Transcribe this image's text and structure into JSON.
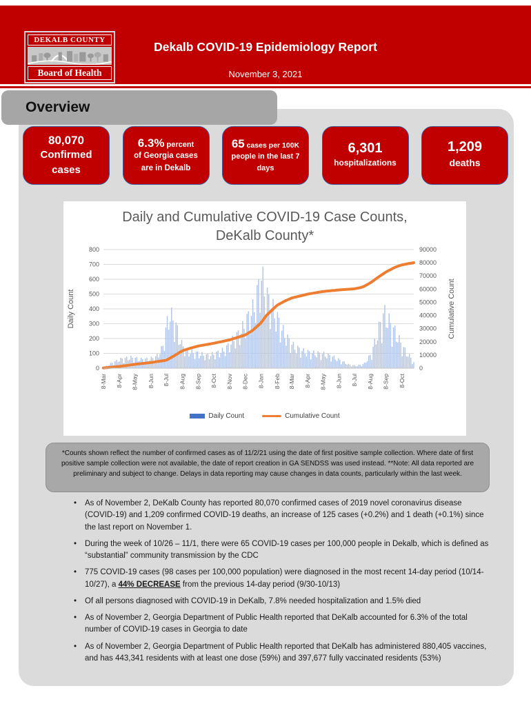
{
  "header": {
    "logo_top": "DEKALB COUNTY",
    "logo_bottom": "Board of Health",
    "title": "Dekalb COVID-19 Epidemiology Report",
    "date": "November 3, 2021"
  },
  "section": {
    "title": "Overview"
  },
  "stats": [
    {
      "primary": "80,070",
      "secondary": "",
      "lines": [
        "Confirmed",
        "cases"
      ]
    },
    {
      "primary": "6.3%",
      "secondary": " percent",
      "lines": [
        "of Georgia cases",
        "are in Dekalb"
      ]
    },
    {
      "primary": "65",
      "secondary": " cases per 100K",
      "lines": [
        "people in the last 7",
        "days"
      ]
    },
    {
      "primary": "6,301",
      "secondary": "",
      "lines": [
        "hospitalizations"
      ]
    },
    {
      "primary": "1,209",
      "secondary": "",
      "lines": [
        "deaths"
      ]
    }
  ],
  "chart_data": {
    "type": "bar+line combo",
    "title": "Daily and Cumulative COVID-19 Case Counts, DeKalb County*",
    "x_ticks": [
      "8-Mar",
      "8-Apr",
      "8-May",
      "8-Jun",
      "8-Jul",
      "8-Aug",
      "8-Sep",
      "8-Oct",
      "8-Nov",
      "8-Dec",
      "8-Jan",
      "8-Feb",
      "8-Mar",
      "8-Apr",
      "8-May",
      "8-Jun",
      "8-Jul",
      "8-Aug",
      "8-Sep",
      "8-Oct"
    ],
    "x_span_days": 602,
    "x_tick_day_offsets": [
      0,
      31,
      61,
      92,
      122,
      153,
      184,
      214,
      245,
      275,
      306,
      337,
      365,
      396,
      426,
      457,
      487,
      518,
      548,
      579
    ],
    "y_left": {
      "label": "Daily Count",
      "min": 0,
      "max": 800,
      "step": 100
    },
    "y_right": {
      "label": "Cumulative Count",
      "min": 0,
      "max": 90000,
      "step": 10000
    },
    "grid": true,
    "legend_position": "bottom",
    "series": [
      {
        "name": "Daily Count",
        "type": "bar",
        "color": "#b3c6e7",
        "legend_color": "#4472c4",
        "envelope_keyframes": [
          [
            0.0,
            5
          ],
          [
            0.03,
            45
          ],
          [
            0.06,
            75
          ],
          [
            0.09,
            85
          ],
          [
            0.12,
            70
          ],
          [
            0.15,
            75
          ],
          [
            0.17,
            90
          ],
          [
            0.19,
            160
          ],
          [
            0.203,
            330
          ],
          [
            0.212,
            445
          ],
          [
            0.222,
            400
          ],
          [
            0.235,
            330
          ],
          [
            0.25,
            200
          ],
          [
            0.27,
            135
          ],
          [
            0.3,
            120
          ],
          [
            0.33,
            100
          ],
          [
            0.36,
            115
          ],
          [
            0.39,
            145
          ],
          [
            0.42,
            230
          ],
          [
            0.445,
            300
          ],
          [
            0.465,
            400
          ],
          [
            0.485,
            480
          ],
          [
            0.5,
            640
          ],
          [
            0.508,
            755
          ],
          [
            0.518,
            640
          ],
          [
            0.535,
            520
          ],
          [
            0.555,
            430
          ],
          [
            0.575,
            310
          ],
          [
            0.595,
            230
          ],
          [
            0.615,
            170
          ],
          [
            0.645,
            135
          ],
          [
            0.675,
            120
          ],
          [
            0.705,
            115
          ],
          [
            0.735,
            95
          ],
          [
            0.765,
            60
          ],
          [
            0.79,
            30
          ],
          [
            0.815,
            18
          ],
          [
            0.84,
            35
          ],
          [
            0.862,
            110
          ],
          [
            0.88,
            250
          ],
          [
            0.895,
            380
          ],
          [
            0.905,
            440
          ],
          [
            0.915,
            400
          ],
          [
            0.93,
            330
          ],
          [
            0.945,
            270
          ],
          [
            0.96,
            190
          ],
          [
            0.975,
            130
          ],
          [
            0.99,
            85
          ],
          [
            1.0,
            45
          ]
        ]
      },
      {
        "name": "Cumulative Count",
        "type": "line",
        "color": "#ed7d31",
        "keyframes": [
          [
            0,
            150
          ],
          [
            0.0515,
            1300
          ],
          [
            0.1013,
            2900
          ],
          [
            0.1528,
            4300
          ],
          [
            0.2027,
            6000
          ],
          [
            0.225,
            9000
          ],
          [
            0.2541,
            13200
          ],
          [
            0.28,
            15200
          ],
          [
            0.3056,
            16800
          ],
          [
            0.3555,
            18900
          ],
          [
            0.407,
            21500
          ],
          [
            0.4568,
            25200
          ],
          [
            0.48,
            28500
          ],
          [
            0.5083,
            34500
          ],
          [
            0.525,
            40000
          ],
          [
            0.5598,
            47800
          ],
          [
            0.585,
            51000
          ],
          [
            0.6063,
            53200
          ],
          [
            0.6578,
            56200
          ],
          [
            0.7076,
            58200
          ],
          [
            0.7591,
            59400
          ],
          [
            0.809,
            60200
          ],
          [
            0.835,
            61500
          ],
          [
            0.8605,
            64800
          ],
          [
            0.885,
            69000
          ],
          [
            0.912,
            73200
          ],
          [
            0.94,
            76600
          ],
          [
            0.9618,
            78400
          ],
          [
            1,
            80070
          ]
        ]
      }
    ]
  },
  "footnote": "*Counts shown reflect the number of confirmed cases as of 11/2/21 using the date of first positive sample collection. Where date of first positive sample collection were not available, the date of report creation in GA SENDSS was used instead. **Note: All data reported are preliminary and subject to change. Delays in data reporting may cause changes in data counts, particularly within the last week.",
  "bullets": [
    "As of November 2, DeKalb County has reported 80,070 confirmed cases of 2019 novel coronavirus disease (COVID-19) and 1,209 confirmed COVID-19 deaths, an increase of 125 cases (+0.2%) and 1 death (+0.1%) since the last report on November 1.",
    "During the week of 10/26 – 11/1, there were 65 COVID-19 cases per 100,000 people in Dekalb, which is defined as “substantial” community transmission by the CDC",
    {
      "pre": "775 COVID-19 cases (98 cases per 100,000 population) were diagnosed in the most recent 14-day period (10/14-10/27), a ",
      "strong": "44% DECREASE",
      "post": " from the previous 14-day period (9/30-10/13)"
    },
    "Of all persons diagnosed with COVID-19 in DeKalb, 7.8% needed hospitalization and 1.5% died",
    "As of November 2, Georgia Department of Public Health reported that DeKalb accounted for 6.3% of the total number of COVID-19 cases in Georgia to date",
    "As of November 2, Georgia Department of Public Health reported that DeKalb has administered 880,405 vaccines, and has 443,341 residents with at least one dose (59%) and 397,677 fully vaccinated residents (53%)"
  ]
}
